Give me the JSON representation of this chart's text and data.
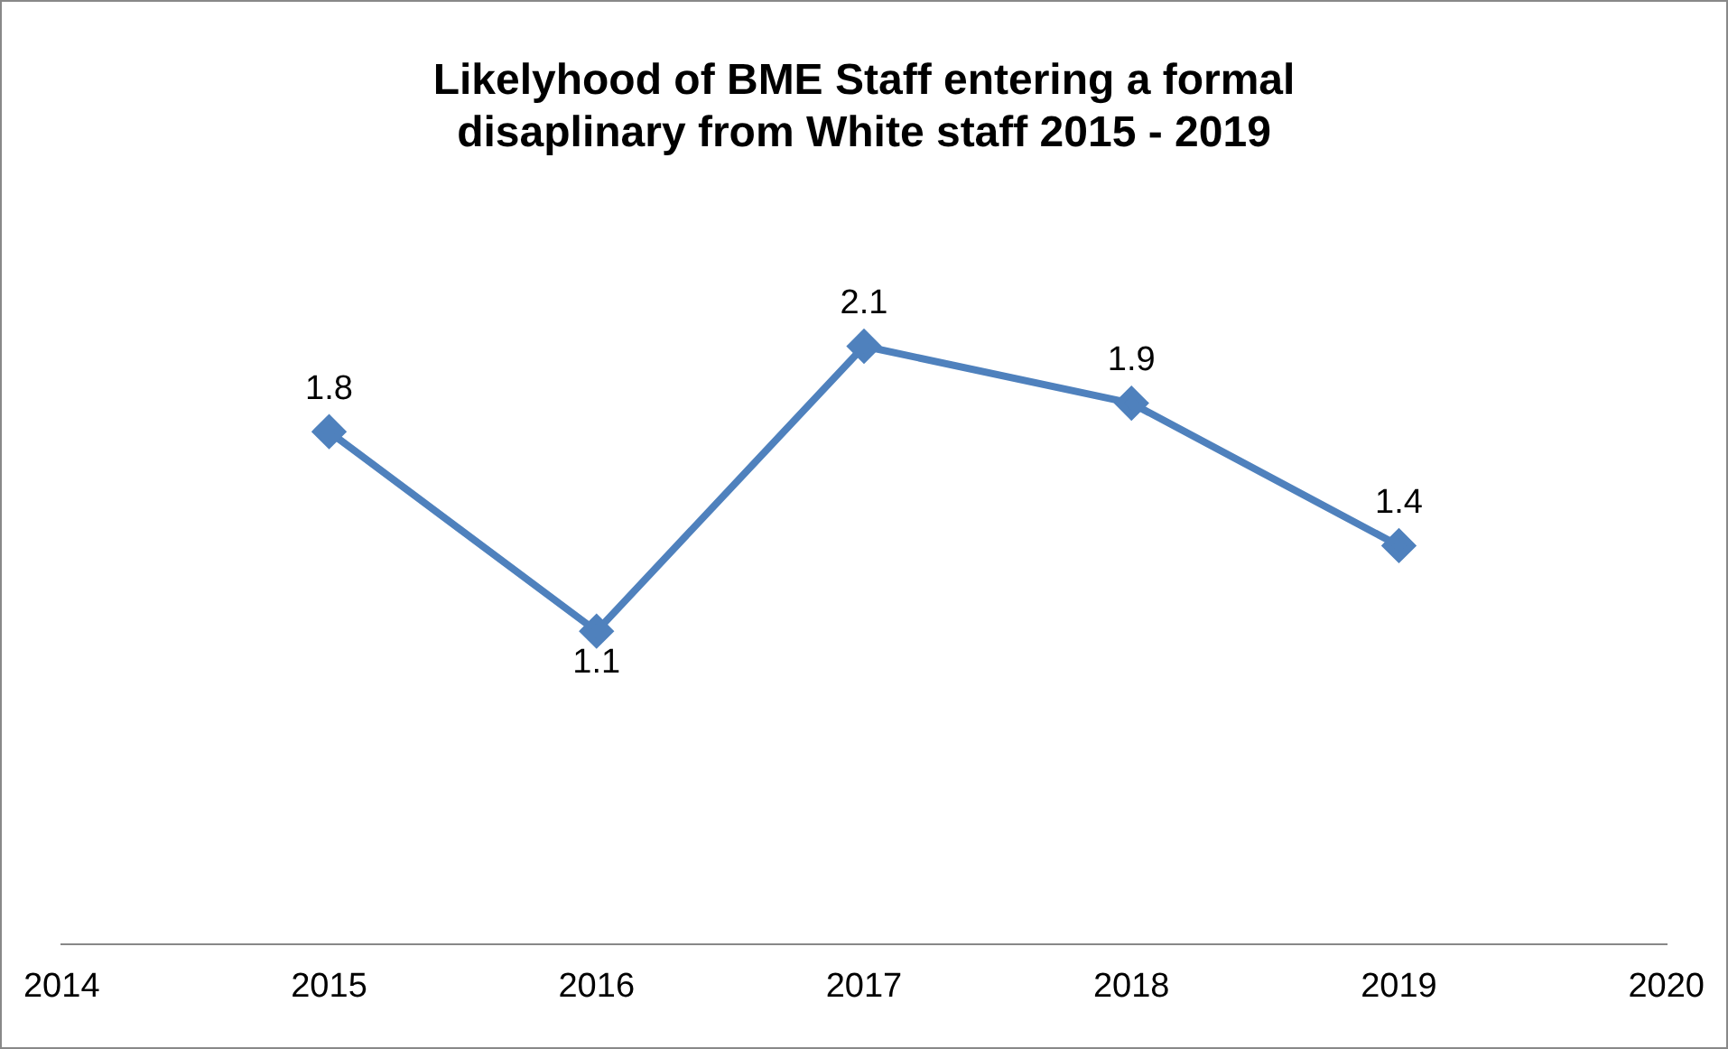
{
  "chart_data": {
    "type": "line",
    "title": "Likelyhood of BME Staff entering a formal disaplinary from White staff 2015 - 2019",
    "x": [
      2015,
      2016,
      2017,
      2018,
      2019
    ],
    "series": [
      {
        "color": "#4f81bd",
        "values": [
          1.8,
          1.1,
          2.1,
          1.9,
          1.4
        ]
      }
    ],
    "xlim": [
      2014,
      2020
    ],
    "xticks": [
      2014,
      2015,
      2016,
      2017,
      2018,
      2019,
      2020
    ],
    "tick_labels": "x",
    "grid": false,
    "legend": false,
    "marker": "diamond",
    "line_style": "solid",
    "data_labels": true
  }
}
